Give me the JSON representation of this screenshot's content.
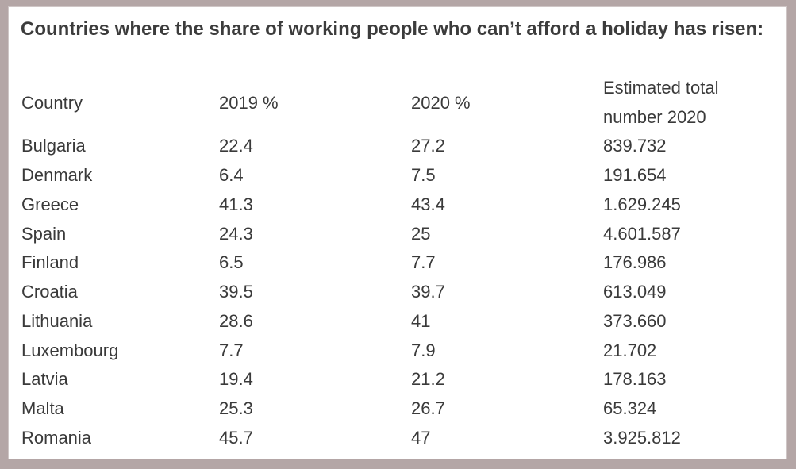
{
  "title": "Countries where the share of working people who can’t afford a holiday has risen:",
  "table": {
    "headers": [
      "Country",
      "2019 %",
      "2020 %",
      "Estimated total",
      "number 2020"
    ],
    "rows": [
      [
        "Bulgaria",
        "22.4",
        "27.2",
        "839.732"
      ],
      [
        "Denmark",
        "6.4",
        "7.5",
        "191.654"
      ],
      [
        "Greece",
        "41.3",
        "43.4",
        "1.629.245"
      ],
      [
        "Spain",
        "24.3",
        "25",
        "4.601.587"
      ],
      [
        "Finland",
        "6.5",
        "7.7",
        "176.986"
      ],
      [
        "Croatia",
        "39.5",
        "39.7",
        "613.049"
      ],
      [
        "Lithuania",
        "28.6",
        "41",
        "373.660"
      ],
      [
        "Luxembourg",
        "7.7",
        "7.9",
        "21.702"
      ],
      [
        "Latvia",
        "19.4",
        "21.2",
        "178.163"
      ],
      [
        "Malta",
        "25.3",
        "26.7",
        "65.324"
      ],
      [
        "Romania",
        "45.7",
        "47",
        "3.925.812"
      ]
    ]
  }
}
